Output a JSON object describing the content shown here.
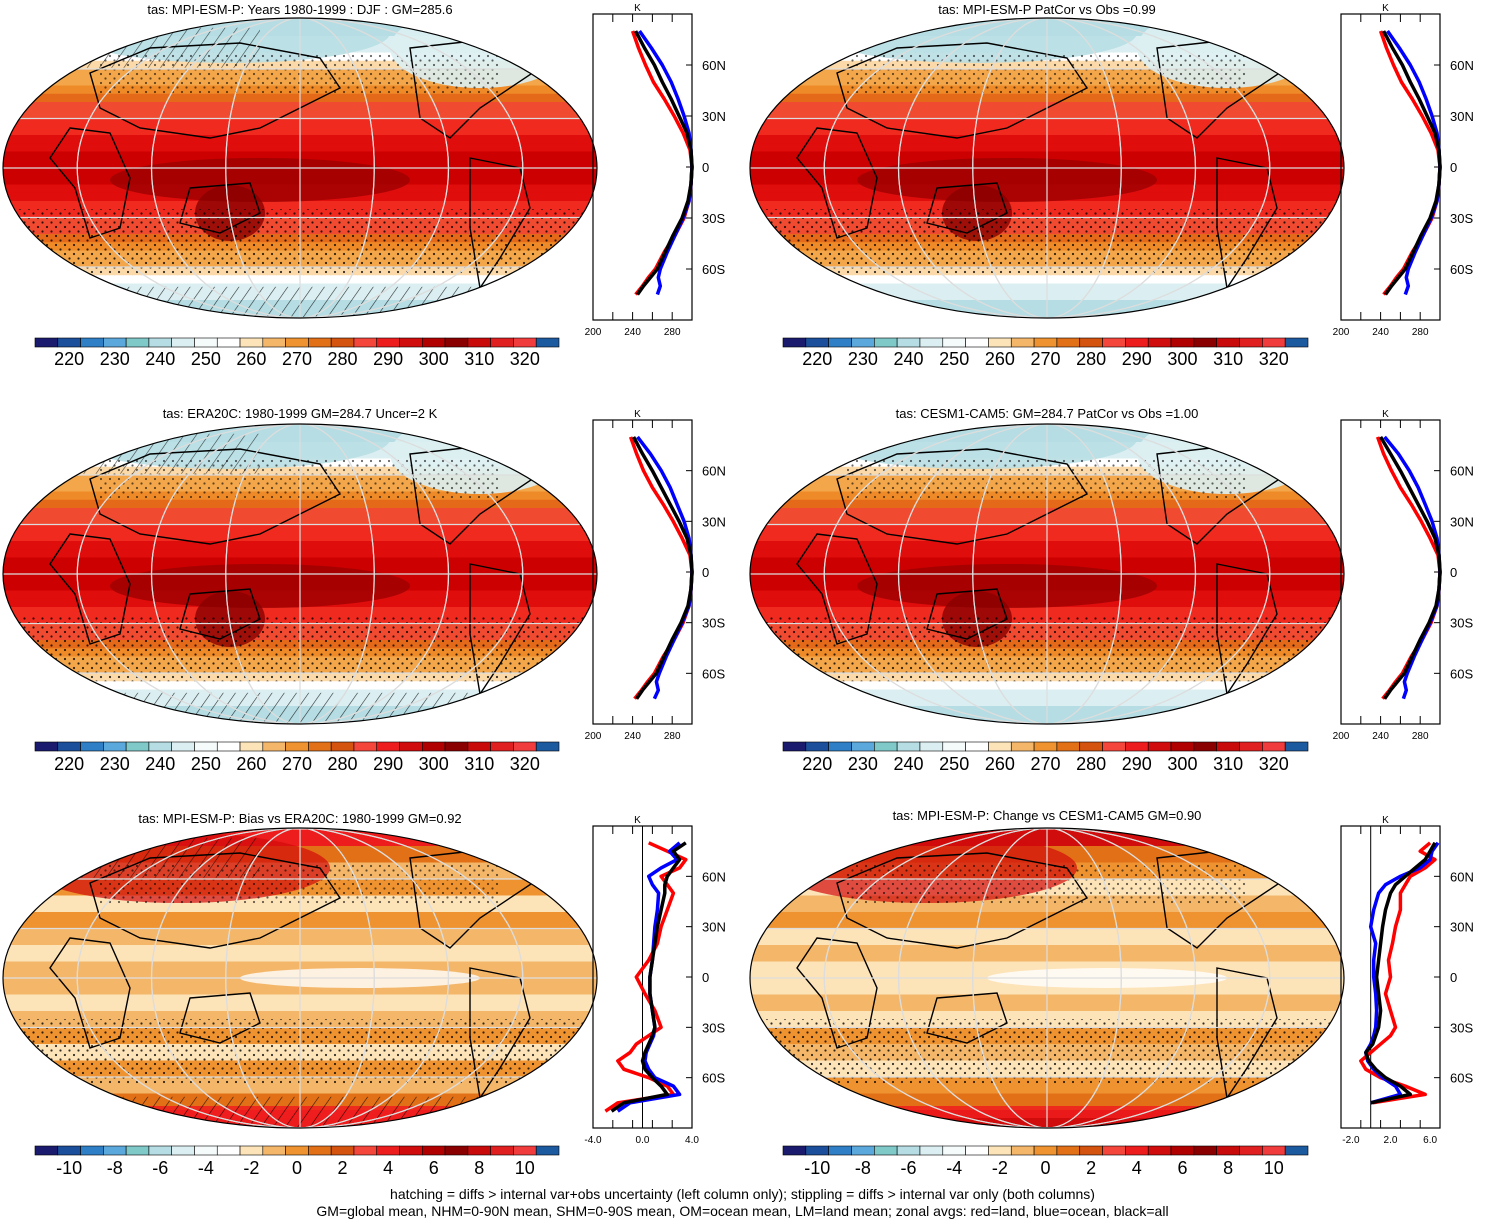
{
  "footer": {
    "line1": "hatching = diffs > internal var+obs uncertainty (left column only); stippling = diffs > internal var only (both columns)",
    "line2": "GM=global mean, NHM=0-90N mean, SHM=0-90S mean, OM=ocean mean, LM=land mean; zonal avgs: red=land, blue=ocean, black=all"
  },
  "palettes": {
    "absolute": [
      "#1a1a6e",
      "#1b4f9c",
      "#2f7fc7",
      "#5aa8dc",
      "#7fc9c9",
      "#b5dde3",
      "#dbeff2",
      "#f5fbfb",
      "#ffffff",
      "#fde3b8",
      "#f4b76a",
      "#ef9330",
      "#e27017",
      "#d4530e",
      "#f4463a",
      "#ee1d1d",
      "#d10c0c",
      "#b00000",
      "#8a0000",
      "#c80a0a",
      "#e02020",
      "#f03c3c",
      "#1c5aa0"
    ],
    "difference": [
      "#1a1a6e",
      "#1b4f9c",
      "#2f7fc7",
      "#5aa8dc",
      "#7fc9c9",
      "#b5dde3",
      "#dbeff2",
      "#f5fbfb",
      "#ffffff",
      "#fde3b8",
      "#f4b76a",
      "#ef9330",
      "#e27017",
      "#d4530e",
      "#f4463a",
      "#ee1d1d",
      "#d10c0c",
      "#b00000",
      "#8a0000",
      "#c80a0a",
      "#e02020",
      "#f03c3c",
      "#1c5aa0"
    ],
    "zonal_colors": {
      "land": "#ff0000",
      "ocean": "#0000ff",
      "all": "#000000"
    }
  },
  "chart_data": [
    {
      "type": "heatmap",
      "title": "tas: MPI-ESM-P: Years 1980-1999 : DJF : GM=285.6",
      "projection": "Robinson",
      "field_kind": "absolute",
      "colorbar": {
        "labels": [
          "220",
          "230",
          "240",
          "250",
          "260",
          "270",
          "280",
          "290",
          "300",
          "310",
          "320"
        ]
      },
      "lat_labels": [
        "60N",
        "30N",
        "0",
        "30S",
        "60S"
      ],
      "zonal_mean": {
        "unit_label": "K",
        "xlim": [
          200,
          300
        ],
        "xticks": [
          "200",
          "240",
          "280"
        ],
        "lat": [
          -75,
          -70,
          -65,
          -60,
          -50,
          -40,
          -30,
          -20,
          -10,
          0,
          10,
          20,
          30,
          40,
          50,
          60,
          70,
          80
        ],
        "all": [
          245,
          251,
          258,
          265,
          273,
          281,
          290,
          296,
          299,
          300,
          299,
          295,
          287,
          279,
          270,
          262,
          252,
          243
        ],
        "land": [
          243,
          250,
          256,
          263,
          272,
          283,
          292,
          297,
          299,
          300,
          298,
          291,
          282,
          272,
          261,
          253,
          246,
          240
        ],
        "ocean": [
          265,
          268,
          266,
          268,
          275,
          283,
          291,
          297,
          299,
          300,
          299,
          297,
          292,
          286,
          279,
          270,
          259,
          247
        ]
      }
    },
    {
      "type": "heatmap",
      "title": "tas: MPI-ESM-P PatCor vs Obs =0.99",
      "projection": "Robinson",
      "field_kind": "absolute",
      "colorbar": {
        "labels": [
          "220",
          "230",
          "240",
          "250",
          "260",
          "270",
          "280",
          "290",
          "300",
          "310",
          "320"
        ]
      },
      "lat_labels": [
        "60N",
        "30N",
        "0",
        "30S",
        "60S"
      ],
      "zonal_mean": {
        "unit_label": "K",
        "xlim": [
          200,
          300
        ],
        "xticks": [
          "200",
          "240",
          "280"
        ],
        "lat": [
          -75,
          -70,
          -65,
          -60,
          -50,
          -40,
          -30,
          -20,
          -10,
          0,
          10,
          20,
          30,
          40,
          50,
          60,
          70,
          80
        ],
        "all": [
          245,
          251,
          258,
          265,
          273,
          281,
          290,
          296,
          299,
          300,
          299,
          295,
          287,
          279,
          270,
          262,
          252,
          243
        ],
        "land": [
          243,
          250,
          256,
          263,
          272,
          283,
          292,
          297,
          299,
          300,
          298,
          291,
          282,
          272,
          261,
          253,
          246,
          240
        ],
        "ocean": [
          265,
          268,
          266,
          268,
          275,
          283,
          291,
          297,
          299,
          300,
          299,
          297,
          292,
          286,
          279,
          270,
          259,
          247
        ]
      }
    },
    {
      "type": "heatmap",
      "title": "tas: ERA20C: 1980-1999 GM=284.7 Uncer=2 K",
      "projection": "Robinson",
      "field_kind": "absolute",
      "colorbar": {
        "labels": [
          "220",
          "230",
          "240",
          "250",
          "260",
          "270",
          "280",
          "290",
          "300",
          "310",
          "320"
        ]
      },
      "lat_labels": [
        "60N",
        "30N",
        "0",
        "30S",
        "60S"
      ],
      "zonal_mean": {
        "unit_label": "K",
        "xlim": [
          200,
          300
        ],
        "xticks": [
          "200",
          "240",
          "280"
        ],
        "lat": [
          -75,
          -70,
          -65,
          -60,
          -50,
          -40,
          -30,
          -20,
          -10,
          0,
          10,
          20,
          30,
          40,
          50,
          60,
          70,
          80
        ],
        "all": [
          244,
          250,
          257,
          264,
          272,
          280,
          289,
          296,
          299,
          300,
          299,
          295,
          287,
          278,
          269,
          260,
          250,
          241
        ],
        "land": [
          242,
          249,
          255,
          262,
          271,
          282,
          291,
          297,
          299,
          300,
          298,
          290,
          281,
          271,
          260,
          251,
          244,
          238
        ],
        "ocean": [
          262,
          266,
          264,
          267,
          274,
          282,
          290,
          297,
          299,
          300,
          299,
          297,
          292,
          285,
          278,
          269,
          258,
          245
        ]
      }
    },
    {
      "type": "heatmap",
      "title": "tas: CESM1-CAM5: GM=284.7 PatCor vs Obs =1.00",
      "projection": "Robinson",
      "field_kind": "absolute",
      "colorbar": {
        "labels": [
          "220",
          "230",
          "240",
          "250",
          "260",
          "270",
          "280",
          "290",
          "300",
          "310",
          "320"
        ]
      },
      "lat_labels": [
        "60N",
        "30N",
        "0",
        "30S",
        "60S"
      ],
      "zonal_mean": {
        "unit_label": "K",
        "xlim": [
          200,
          300
        ],
        "xticks": [
          "200",
          "240",
          "280"
        ],
        "lat": [
          -75,
          -70,
          -65,
          -60,
          -50,
          -40,
          -30,
          -20,
          -10,
          0,
          10,
          20,
          30,
          40,
          50,
          60,
          70,
          80
        ],
        "all": [
          244,
          250,
          257,
          264,
          272,
          280,
          289,
          296,
          299,
          300,
          299,
          295,
          287,
          278,
          269,
          260,
          250,
          240
        ],
        "land": [
          242,
          249,
          255,
          262,
          271,
          282,
          291,
          297,
          299,
          300,
          298,
          290,
          281,
          271,
          260,
          251,
          243,
          237
        ],
        "ocean": [
          263,
          266,
          264,
          267,
          274,
          282,
          290,
          297,
          299,
          300,
          299,
          297,
          292,
          285,
          278,
          269,
          258,
          244
        ]
      }
    },
    {
      "type": "heatmap",
      "title": "tas: MPI-ESM-P: Bias vs ERA20C: 1980-1999 GM=0.92",
      "projection": "Robinson",
      "field_kind": "difference",
      "colorbar": {
        "labels": [
          "-10",
          "-8",
          "-6",
          "-4",
          "-2",
          "0",
          "2",
          "4",
          "6",
          "8",
          "10"
        ]
      },
      "lat_labels": [
        "60N",
        "30N",
        "0",
        "30S",
        "60S"
      ],
      "zonal_mean": {
        "unit_label": "K",
        "xlim": [
          -4,
          4
        ],
        "xticks": [
          "-4.0",
          "0.0",
          "4.0"
        ],
        "lat": [
          -80,
          -75,
          -70,
          -65,
          -60,
          -55,
          -50,
          -45,
          -40,
          -35,
          -30,
          -20,
          -10,
          0,
          10,
          20,
          30,
          40,
          50,
          55,
          60,
          65,
          70,
          75,
          80
        ],
        "all": [
          -2.5,
          -1.5,
          2.0,
          1.5,
          0.8,
          0.2,
          0.0,
          0.2,
          0.5,
          0.8,
          1.0,
          0.8,
          0.6,
          0.6,
          0.8,
          1.0,
          1.2,
          1.5,
          1.8,
          1.8,
          2.0,
          2.5,
          3.0,
          2.5,
          3.5
        ],
        "land": [
          -3.0,
          -2.0,
          2.5,
          2.0,
          0.5,
          -1.5,
          -2.0,
          -1.0,
          -0.5,
          0.5,
          1.5,
          1.0,
          0.2,
          -0.5,
          0.5,
          1.2,
          1.5,
          2.0,
          2.5,
          2.0,
          1.5,
          3.0,
          3.5,
          2.0,
          0.5
        ],
        "ocean": [
          -2.0,
          -1.0,
          3.0,
          2.5,
          1.0,
          0.5,
          0.2,
          0.3,
          0.6,
          0.9,
          1.0,
          0.8,
          0.6,
          0.6,
          0.8,
          0.9,
          1.0,
          1.2,
          1.3,
          0.8,
          0.5,
          1.5,
          2.8,
          2.2,
          3.0
        ]
      }
    },
    {
      "type": "heatmap",
      "title": "tas: MPI-ESM-P: Change vs CESM1-CAM5 GM=0.90",
      "projection": "Robinson",
      "field_kind": "difference",
      "colorbar": {
        "labels": [
          "-10",
          "-8",
          "-6",
          "-4",
          "-2",
          "0",
          "2",
          "4",
          "6",
          "8",
          "10"
        ]
      },
      "lat_labels": [
        "60N",
        "30N",
        "0",
        "30S",
        "60S"
      ],
      "zonal_mean": {
        "unit_label": "K",
        "xlim": [
          -3,
          7
        ],
        "xticks": [
          "-2.0",
          "2.0",
          "6.0"
        ],
        "lat": [
          -75,
          -70,
          -65,
          -60,
          -55,
          -50,
          -45,
          -40,
          -35,
          -30,
          -20,
          -10,
          0,
          10,
          20,
          30,
          40,
          50,
          55,
          60,
          65,
          70,
          75,
          80
        ],
        "all": [
          0.0,
          4.0,
          3.0,
          1.5,
          0.5,
          -0.2,
          -0.5,
          0.2,
          0.5,
          0.8,
          1.0,
          0.8,
          0.6,
          0.8,
          1.0,
          1.2,
          1.5,
          2.0,
          2.5,
          3.5,
          4.5,
          5.5,
          6.0,
          6.5
        ],
        "land": [
          0.2,
          5.5,
          3.5,
          1.0,
          -0.5,
          -1.0,
          0.0,
          1.0,
          2.0,
          2.5,
          2.0,
          1.5,
          2.0,
          1.8,
          2.2,
          2.5,
          3.0,
          3.0,
          3.5,
          4.0,
          5.5,
          6.5,
          5.0,
          6.0
        ],
        "ocean": [
          0.0,
          3.0,
          2.5,
          1.2,
          0.3,
          -0.3,
          -0.5,
          0.0,
          0.3,
          0.5,
          0.6,
          0.5,
          0.3,
          0.3,
          0.5,
          0.0,
          0.3,
          0.8,
          1.5,
          3.0,
          5.0,
          6.0,
          6.2,
          6.8
        ]
      }
    }
  ]
}
